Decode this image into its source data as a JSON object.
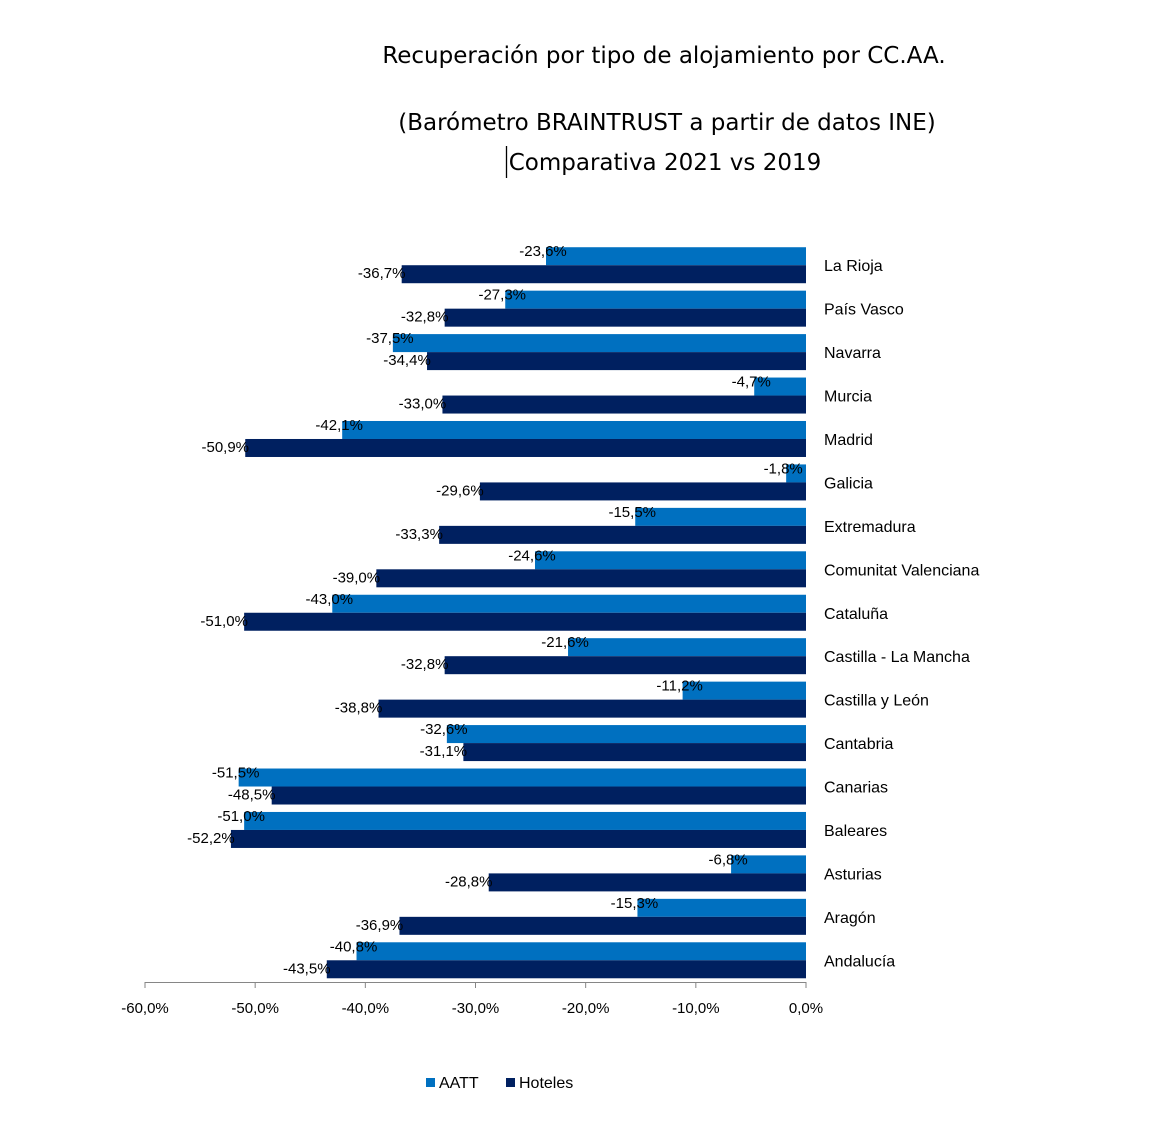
{
  "chart_data": {
    "type": "bar",
    "orientation": "horizontal",
    "title_lines": [
      "Recuperación por tipo de alojamiento por CC.AA.",
      "(Barómetro BRAINTRUST a partir de datos INE)",
      "Comparativa 2021 vs 2019"
    ],
    "categories": [
      "La Rioja",
      "País Vasco",
      "Navarra",
      "Murcia",
      "Madrid",
      "Galicia",
      "Extremadura",
      "Comunitat Valenciana",
      "Cataluña",
      "Castilla  - La Mancha",
      "Castilla y León",
      "Cantabria",
      "Canarias",
      "Baleares",
      "Asturias",
      "Aragón",
      "Andalucía"
    ],
    "series": [
      {
        "name": "AATT",
        "color": "#0070c0",
        "values": [
          -23.6,
          -27.3,
          -37.5,
          -4.7,
          -42.1,
          -1.8,
          -15.5,
          -24.6,
          -43.0,
          -21.6,
          -11.2,
          -32.6,
          -51.5,
          -51.0,
          -6.8,
          -15.3,
          -40.8
        ],
        "labels": [
          "-23,6%",
          "-27,3%",
          "-37,5%",
          "-4,7%",
          "-42,1%",
          "-1,8%",
          "-15,5%",
          "-24,6%",
          "-43,0%",
          "-21,6%",
          "-11,2%",
          "-32,6%",
          "-51,5%",
          "-51,0%",
          "-6,8%",
          "-15,3%",
          "-40,8%"
        ]
      },
      {
        "name": "Hoteles",
        "color": "#002060",
        "values": [
          -36.7,
          -32.8,
          -34.4,
          -33.0,
          -50.9,
          -29.6,
          -33.3,
          -39.0,
          -51.0,
          -32.8,
          -38.8,
          -31.1,
          -48.5,
          -52.2,
          -28.8,
          -36.9,
          -43.5
        ],
        "labels": [
          "-36,7%",
          "-32,8%",
          "-34,4%",
          "-33,0%",
          "-50,9%",
          "-29,6%",
          "-33,3%",
          "-39,0%",
          "-51,0%",
          "-32,8%",
          "-38,8%",
          "-31,1%",
          "-48,5%",
          "-52,2%",
          "-28,8%",
          "-36,9%",
          "-43,5%"
        ]
      }
    ],
    "xlim": [
      -60,
      0
    ],
    "x_ticks": [
      -60,
      -50,
      -40,
      -30,
      -20,
      -10,
      0
    ],
    "x_tick_labels": [
      "-60,0%",
      "-50,0%",
      "-40,0%",
      "-30,0%",
      "-20,0%",
      "-10,0%",
      "0,0%"
    ],
    "grid": false,
    "legend_position": "bottom"
  }
}
